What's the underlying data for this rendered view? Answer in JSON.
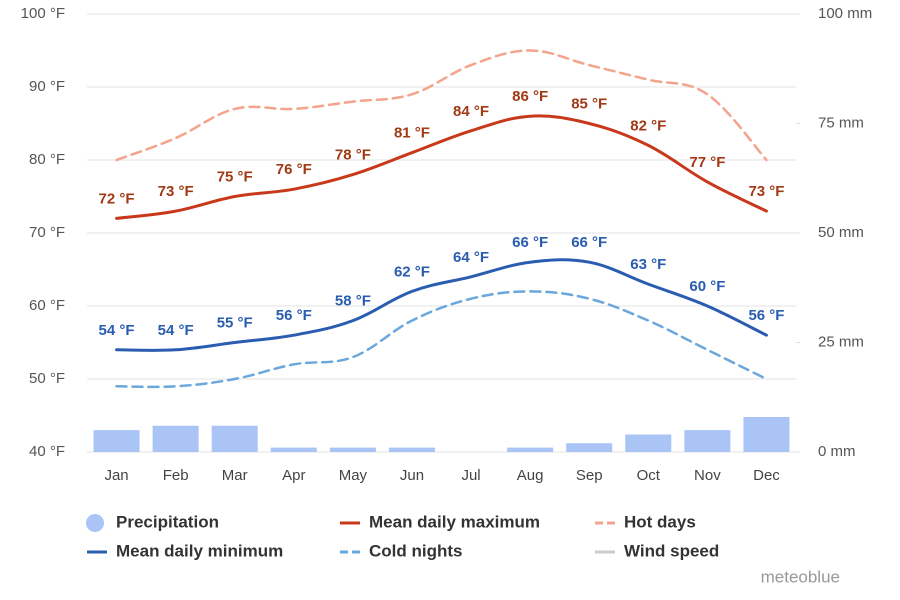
{
  "chart_data": {
    "type": "line",
    "categories": [
      "Jan",
      "Feb",
      "Mar",
      "Apr",
      "May",
      "Jun",
      "Jul",
      "Aug",
      "Sep",
      "Oct",
      "Nov",
      "Dec"
    ],
    "ylim": [
      40,
      100
    ],
    "yticks": [
      {
        "value": 40,
        "label": "40 °F"
      },
      {
        "value": 50,
        "label": "50 °F"
      },
      {
        "value": 60,
        "label": "60 °F"
      },
      {
        "value": 70,
        "label": "70 °F"
      },
      {
        "value": 80,
        "label": "80 °F"
      },
      {
        "value": 90,
        "label": "90 °F"
      },
      {
        "value": 100,
        "label": "100 °F"
      }
    ],
    "y2lim": [
      0,
      100
    ],
    "y2ticks": [
      {
        "value": 0,
        "label": "0 mm"
      },
      {
        "value": 25,
        "label": "25 mm"
      },
      {
        "value": 50,
        "label": "50 mm"
      },
      {
        "value": 75,
        "label": "75 mm"
      },
      {
        "value": 100,
        "label": "100 mm"
      }
    ],
    "grid": true,
    "series": [
      {
        "name": "Precipitation",
        "type": "bar",
        "axis": "y2",
        "color": "#a9c4f5",
        "values": [
          5,
          6,
          6,
          1,
          1,
          1,
          0,
          1,
          2,
          4,
          5,
          8
        ]
      },
      {
        "name": "Mean daily maximum",
        "type": "line",
        "color": "#c8391b",
        "label_color": "#a13a15",
        "values": [
          72,
          73,
          75,
          76,
          78,
          81,
          84,
          86,
          85,
          82,
          77,
          73
        ],
        "value_labels": [
          "72 °F",
          "73 °F",
          "75 °F",
          "76 °F",
          "78 °F",
          "81 °F",
          "84 °F",
          "86 °F",
          "85 °F",
          "82 °F",
          "77 °F",
          "73 °F"
        ]
      },
      {
        "name": "Hot days",
        "type": "line",
        "dashed": true,
        "color": "#f4a38c",
        "values": [
          80,
          83,
          87,
          87,
          88,
          89,
          93,
          95,
          93,
          91,
          89,
          80
        ]
      },
      {
        "name": "Mean daily minimum",
        "type": "line",
        "color": "#2a5db0",
        "label_color": "#2a5db0",
        "values": [
          54,
          54,
          55,
          56,
          58,
          62,
          64,
          66,
          66,
          63,
          60,
          56
        ],
        "value_labels": [
          "54 °F",
          "54 °F",
          "55 °F",
          "56 °F",
          "58 °F",
          "62 °F",
          "64 °F",
          "66 °F",
          "66 °F",
          "63 °F",
          "60 °F",
          "56 °F"
        ]
      },
      {
        "name": "Cold nights",
        "type": "line",
        "dashed": true,
        "color": "#6aa7dc",
        "values": [
          49,
          49,
          50,
          52,
          53,
          58,
          61,
          62,
          61,
          58,
          54,
          50
        ]
      },
      {
        "name": "Wind speed",
        "type": "line",
        "color": "#cccccc",
        "hidden": true,
        "values": [
          null,
          null,
          null,
          null,
          null,
          null,
          null,
          null,
          null,
          null,
          null,
          null
        ]
      }
    ],
    "watermark": "meteoblue"
  }
}
